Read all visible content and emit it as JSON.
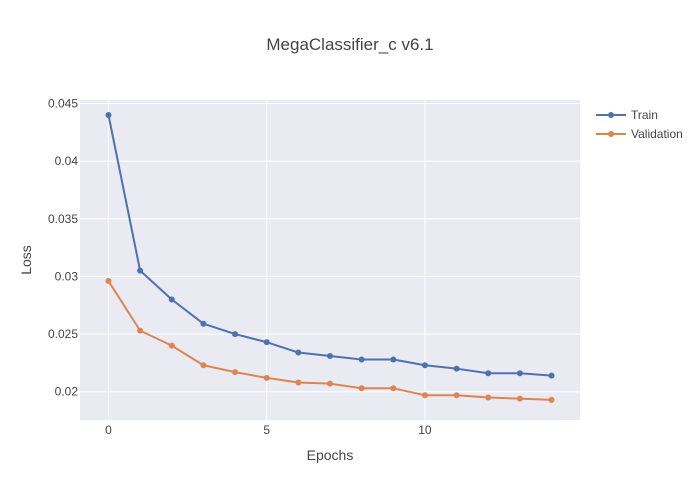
{
  "chart_data": {
    "type": "line",
    "title": "MegaClassifier_c v6.1",
    "xlabel": "Epochs",
    "ylabel": "Loss",
    "x": [
      0,
      1,
      2,
      3,
      4,
      5,
      6,
      7,
      8,
      9,
      10,
      11,
      12,
      13,
      14
    ],
    "series": [
      {
        "name": "Train",
        "color": "#4c72b0",
        "values": [
          0.044,
          0.0305,
          0.028,
          0.0259,
          0.025,
          0.0243,
          0.0234,
          0.0231,
          0.0228,
          0.0228,
          0.0223,
          0.022,
          0.0216,
          0.0216,
          0.0214
        ]
      },
      {
        "name": "Validation",
        "color": "#dd8452",
        "values": [
          0.0296,
          0.0253,
          0.024,
          0.0223,
          0.0217,
          0.0212,
          0.0208,
          0.0207,
          0.0203,
          0.0203,
          0.0197,
          0.0197,
          0.0195,
          0.0194,
          0.0193
        ]
      }
    ],
    "x_ticks": [
      {
        "value": 0,
        "label": "0"
      },
      {
        "value": 5,
        "label": "5"
      },
      {
        "value": 10,
        "label": "10"
      }
    ],
    "y_ticks": [
      {
        "value": 0.02,
        "label": "0.02"
      },
      {
        "value": 0.025,
        "label": "0.025"
      },
      {
        "value": 0.03,
        "label": "0.03"
      },
      {
        "value": 0.035,
        "label": "0.035"
      },
      {
        "value": 0.04,
        "label": "0.04"
      },
      {
        "value": 0.045,
        "label": "0.045"
      }
    ],
    "xlim": [
      -0.9,
      14.9
    ],
    "ylim": [
      0.01755,
      0.0453
    ],
    "grid": true,
    "legend_position": "top-right",
    "plot_background": "#eaeaf2"
  }
}
